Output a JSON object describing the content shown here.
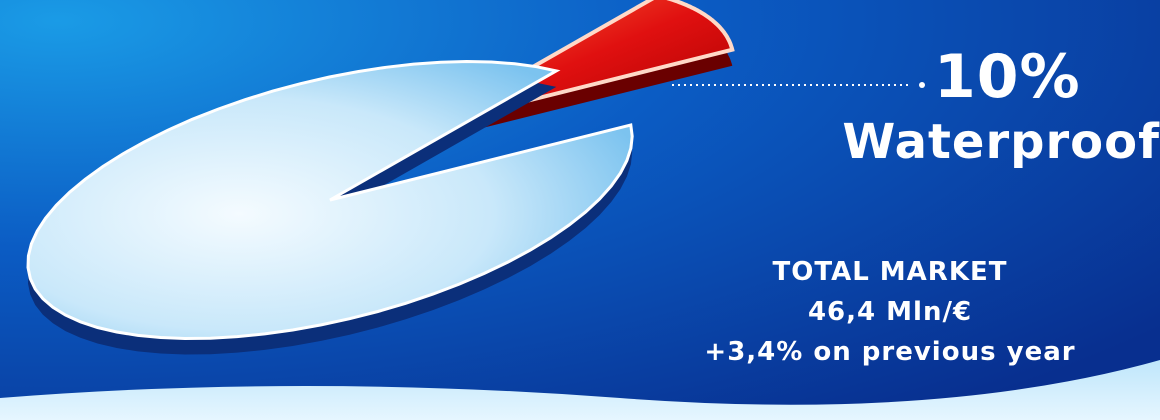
{
  "colors": {
    "background_dark": "#0a2f8c",
    "background_light": "#1a8fe0",
    "slice_main": "#cfe9f9",
    "slice_highlight": "#e01010",
    "text": "#ffffff"
  },
  "chart_data": {
    "type": "pie",
    "slices": [
      {
        "label": "Waterproof",
        "value": 10,
        "highlighted": true
      },
      {
        "label": "",
        "value": 90,
        "highlighted": false
      }
    ],
    "callout": {
      "percent_text": "10%",
      "label": "Waterproof"
    },
    "legend": "none"
  },
  "market": {
    "title": "TOTAL MARKET",
    "value": "46,4 Mln/€",
    "change": "+3,4% on previous year"
  }
}
